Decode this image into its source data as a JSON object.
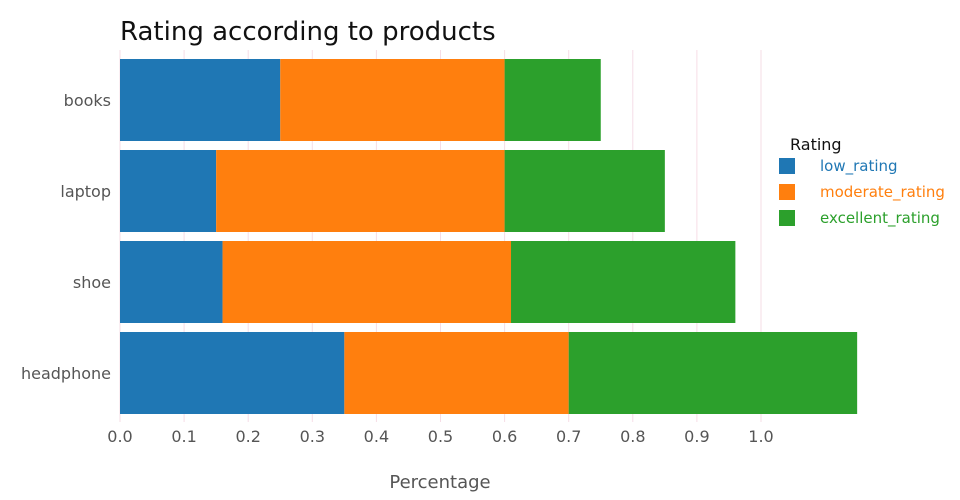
{
  "chart_data": {
    "type": "bar",
    "orientation": "horizontal",
    "stacked": true,
    "title": "Rating according to products",
    "xlabel": "Percentage",
    "ylabel": "",
    "categories": [
      "books",
      "laptop",
      "shoe",
      "headphone"
    ],
    "series": [
      {
        "name": "low_rating",
        "color": "#1f77b4",
        "values": [
          0.25,
          0.15,
          0.16,
          0.35
        ]
      },
      {
        "name": "moderate_rating",
        "color": "#ff7f0e",
        "values": [
          0.35,
          0.45,
          0.45,
          0.35
        ]
      },
      {
        "name": "excellent_rating",
        "color": "#2ca02c",
        "values": [
          0.15,
          0.25,
          0.35,
          0.45
        ]
      }
    ],
    "xticks": [
      "0.0",
      "0.1",
      "0.2",
      "0.3",
      "0.4",
      "0.5",
      "0.6",
      "0.7",
      "0.8",
      "0.9",
      "1.0"
    ],
    "xlim": [
      0,
      1.15
    ],
    "grid": true,
    "legend": {
      "title": "Rating",
      "placement": "right"
    }
  }
}
